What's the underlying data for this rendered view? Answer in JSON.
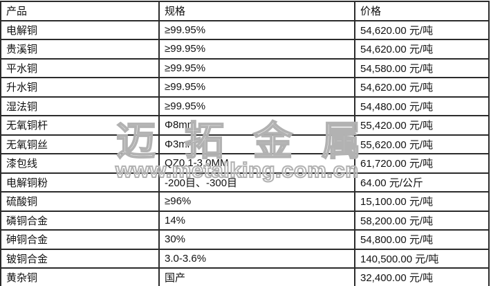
{
  "table": {
    "headers": [
      "产品",
      "规格",
      "价格"
    ],
    "rows": [
      {
        "product": "电解铜",
        "spec": "≥99.95%",
        "price": "54,620.00 元/吨"
      },
      {
        "product": "贵溪铜",
        "spec": "≥99.95%",
        "price": "54,620.00 元/吨"
      },
      {
        "product": "平水铜",
        "spec": "≥99.95%",
        "price": "54,580.00 元/吨"
      },
      {
        "product": "升水铜",
        "spec": "≥99.95%",
        "price": "54,620.00 元/吨"
      },
      {
        "product": "湿法铜",
        "spec": "≥99.95%",
        "price": "54,480.00 元/吨"
      },
      {
        "product": "无氧铜杆",
        "spec": "Φ8mm",
        "price": "55,420.00 元/吨"
      },
      {
        "product": "无氧铜丝",
        "spec": "Φ3mm",
        "price": "55,620.00 元/吨"
      },
      {
        "product": "漆包线",
        "spec": "QZ0.1-3.0MM",
        "price": "61,720.00 元/吨"
      },
      {
        "product": "电解铜粉",
        "spec": "-200目、-300目",
        "price": "64.00 元/公斤"
      },
      {
        "product": "硫酸铜",
        "spec": "≥96%",
        "price": "15,100.00 元/吨"
      },
      {
        "product": "磷铜合金",
        "spec": "14%",
        "price": "58,200.00 元/吨"
      },
      {
        "product": "砷铜合金",
        "spec": "30%",
        "price": "54,800.00 元/吨"
      },
      {
        "product": "铍铜合金",
        "spec": "3.0-3.6%",
        "price": "140,500.00 元/吨"
      },
      {
        "product": "黄杂铜",
        "spec": "国产",
        "price": "32,400.00 元/吨"
      }
    ]
  },
  "watermark": {
    "brand": "迈拓金属",
    "url": "www.metalking.com.cn",
    "color": "#b2b2b2"
  }
}
